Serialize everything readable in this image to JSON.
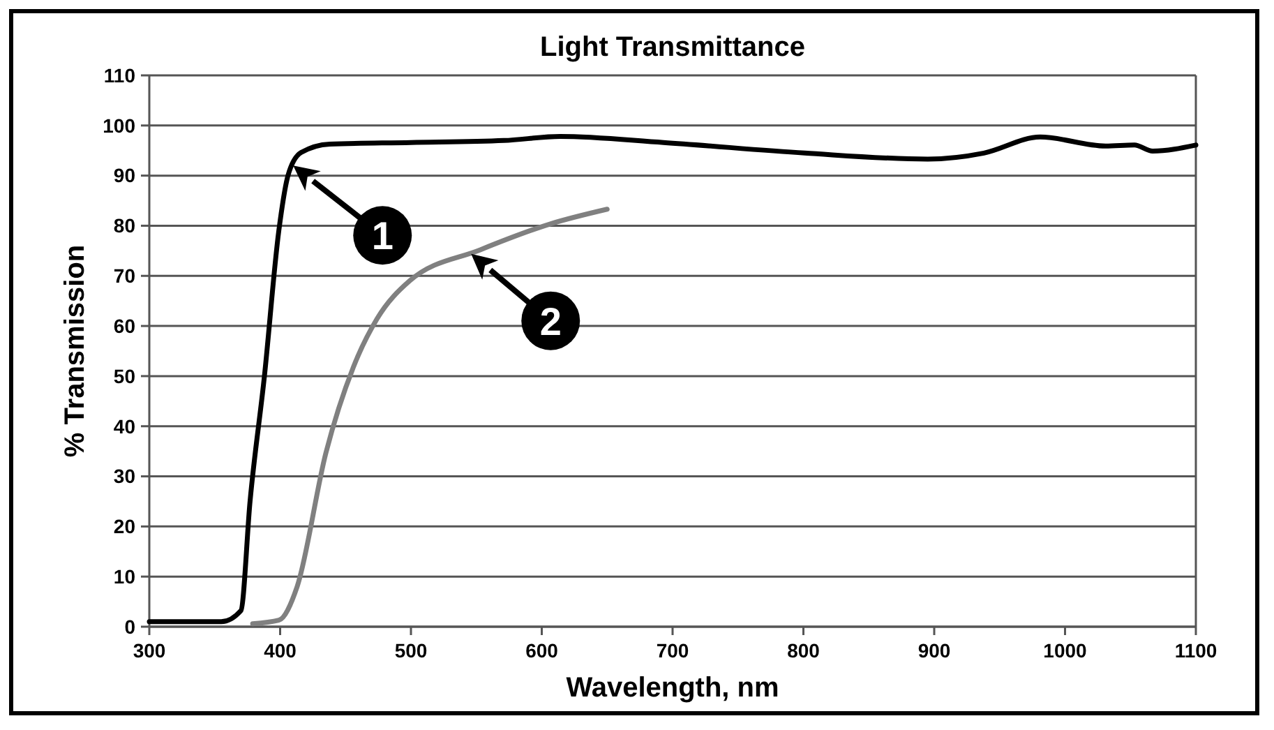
{
  "chart_data": {
    "type": "line",
    "title": "Light Transmittance",
    "xlabel": "Wavelength, nm",
    "ylabel": "% Transmission",
    "xlim": [
      300,
      1100
    ],
    "xticks": [
      300,
      400,
      500,
      600,
      700,
      800,
      900,
      1000,
      1100
    ],
    "ylim": [
      0,
      110
    ],
    "yticks": [
      0,
      10,
      20,
      30,
      40,
      50,
      60,
      70,
      80,
      90,
      100,
      110
    ],
    "grid": "y",
    "marker": "none",
    "line_style": "solid",
    "series": [
      {
        "color": "#000000",
        "x": [
          300,
          355,
          370,
          377,
          388,
          399,
          406,
          416,
          438,
          500,
          571,
          614,
          693,
          801,
          895,
          938,
          981,
          1031,
          1053,
          1067,
          1100
        ],
        "values": [
          1,
          1,
          3.2,
          25,
          50,
          79,
          90,
          94.6,
          96.3,
          96.6,
          97,
          97.8,
          96.6,
          94.5,
          93.3,
          94.5,
          97.7,
          95.9,
          96.1,
          94.9,
          96.1
        ]
      },
      {
        "color": "#808080",
        "x": [
          379,
          399,
          413,
          435,
          456,
          474,
          499,
          553,
          607,
          650
        ],
        "values": [
          0.6,
          1.3,
          8,
          34.7,
          51.8,
          61.4,
          69,
          75.2,
          80.4,
          83.3
        ]
      }
    ],
    "annotations": [
      {
        "text": "1",
        "x": 410,
        "y": 92
      },
      {
        "text": "2",
        "x": 546,
        "y": 74.4
      }
    ]
  }
}
